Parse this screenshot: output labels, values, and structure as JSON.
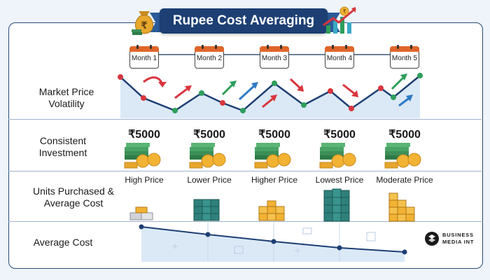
{
  "title": "Rupee Cost Averaging",
  "months": [
    "Month 1",
    "Month 2",
    "Month 3",
    "Month 4",
    "Month 5"
  ],
  "rows": {
    "volatility": "Market Price Volatility",
    "investment": "Consistent Investment",
    "units": "Units Purchased & Average Cost",
    "average": "Average Cost"
  },
  "amounts": [
    "₹5000",
    "₹5000",
    "₹5000",
    "₹5000",
    "₹5000"
  ],
  "price_levels": [
    "High Price",
    "Lower Price",
    "Higher Price",
    "Lowest Price",
    "Moderate Price"
  ],
  "units_per_month_relative": [
    1,
    3,
    2,
    4,
    2.5
  ],
  "brand": {
    "line1": "BUSINESS",
    "line2": "MEDIA INT"
  },
  "colors": {
    "navy": "#1d3f73",
    "red": "#d9363e",
    "green": "#2e9e5b",
    "teal": "#2f7f7a",
    "gold": "#f2b233",
    "orange": "#e0662a"
  },
  "icons": [
    "money-bag-icon",
    "rupee-coin-icon",
    "rising-chart-icon",
    "calendar-icon",
    "cash-stack-icon",
    "gold-bar-icon",
    "coin-stack-icon"
  ]
}
